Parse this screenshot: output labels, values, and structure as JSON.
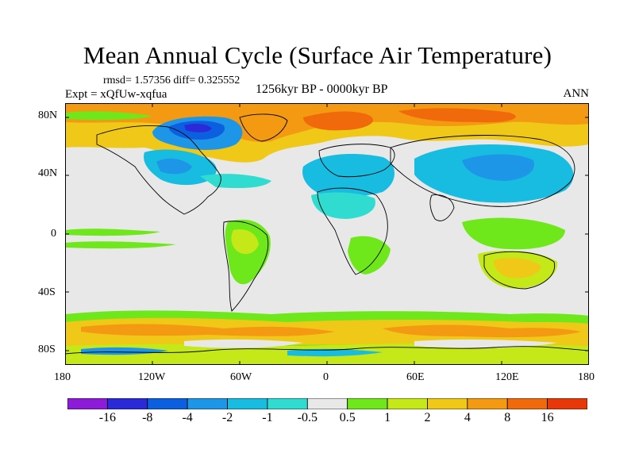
{
  "title": "Mean Annual Cycle (Surface Air Temperature)",
  "stats_line": "rmsd= 1.57356 diff= 0.325552",
  "experiment": "Expt = xQfUw-xqfua",
  "period": "1256kyr BP - 0000kyr BP",
  "season": "ANN",
  "y_axis": {
    "labels": [
      {
        "text": "80N",
        "lat": 80
      },
      {
        "text": "40N",
        "lat": 40
      },
      {
        "text": "0",
        "lat": 0
      },
      {
        "text": "40S",
        "lat": -40
      },
      {
        "text": "80S",
        "lat": -80
      }
    ]
  },
  "x_axis": {
    "labels": [
      {
        "text": "180",
        "lon": -180
      },
      {
        "text": "120W",
        "lon": -120
      },
      {
        "text": "60W",
        "lon": -60
      },
      {
        "text": "0",
        "lon": 0
      },
      {
        "text": "60E",
        "lon": 60
      },
      {
        "text": "120E",
        "lon": 120
      },
      {
        "text": "180",
        "lon": 180
      }
    ]
  },
  "colorbar": {
    "colors": [
      "#8c1cd8",
      "#2a2ad8",
      "#0c60e0",
      "#1e96e8",
      "#18bce0",
      "#30dcd0",
      "#e8e8e8",
      "#6ee81a",
      "#c4e818",
      "#f0c818",
      "#f49a12",
      "#f06a0c",
      "#e8380a"
    ],
    "labels": [
      "-16",
      "-8",
      "-4",
      "-2",
      "-1",
      "-0.5",
      "0.5",
      "1",
      "2",
      "4",
      "8",
      "16"
    ]
  },
  "colors": {
    "background": "#e8e8e8",
    "coast": "#000000"
  }
}
